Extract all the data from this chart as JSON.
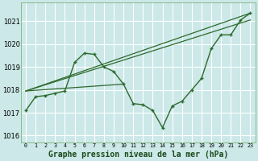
{
  "xlabel": "Graphe pression niveau de la mer (hPa)",
  "bg_color": "#cce8e8",
  "grid_color": "#ffffff",
  "line_color": "#2d6a2d",
  "xlim": [
    -0.5,
    23.5
  ],
  "ylim": [
    1015.7,
    1021.8
  ],
  "yticks": [
    1016,
    1017,
    1018,
    1019,
    1020,
    1021
  ],
  "xticks": [
    0,
    1,
    2,
    3,
    4,
    5,
    6,
    7,
    8,
    9,
    10,
    11,
    12,
    13,
    14,
    15,
    16,
    17,
    18,
    19,
    20,
    21,
    22,
    23
  ],
  "main_x": [
    0,
    1,
    2,
    3,
    4,
    5,
    6,
    7,
    8,
    9,
    10,
    11,
    12,
    13,
    14,
    15,
    16,
    17,
    18,
    19,
    20,
    21,
    22,
    23
  ],
  "main_y": [
    1017.1,
    1017.7,
    1017.75,
    1017.85,
    1017.95,
    1019.2,
    1019.6,
    1019.55,
    1019.0,
    1018.8,
    1018.25,
    1017.4,
    1017.35,
    1017.1,
    1016.35,
    1017.3,
    1017.5,
    1018.0,
    1018.5,
    1019.8,
    1020.4,
    1020.4,
    1021.05,
    1021.35
  ],
  "line1_x": [
    0,
    23
  ],
  "line1_y": [
    1017.95,
    1021.35
  ],
  "line2_x": [
    0,
    23
  ],
  "line2_y": [
    1017.95,
    1021.05
  ],
  "line3_x": [
    0,
    10
  ],
  "line3_y": [
    1017.95,
    1018.25
  ],
  "spine_color": "#88bb88",
  "xlabel_color": "#1a4a1a",
  "xlabel_fontsize": 7.0,
  "ytick_fontsize": 6.0,
  "xtick_fontsize": 4.8
}
